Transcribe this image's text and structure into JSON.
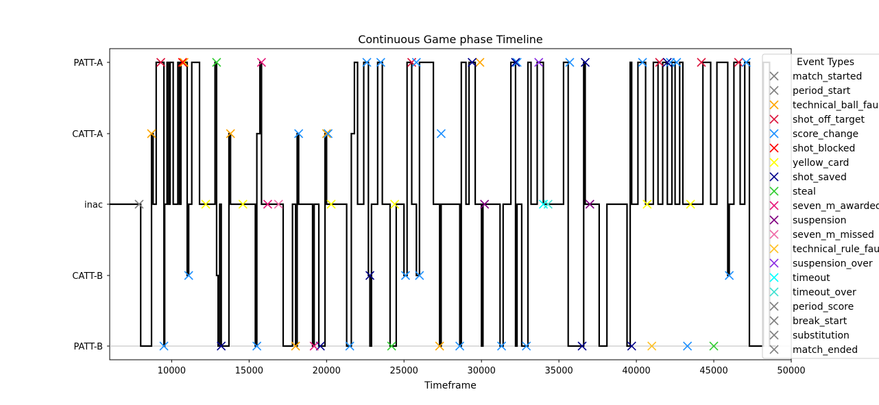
{
  "chart_data": {
    "type": "line",
    "title": "Continuous Game phase Timeline",
    "xlabel": "Timeframe",
    "ylabel": "",
    "xlim": [
      6000,
      50000
    ],
    "x_ticks": [
      10000,
      15000,
      20000,
      25000,
      30000,
      35000,
      40000,
      45000,
      50000
    ],
    "y_categories": [
      "PATT-B",
      "CATT-B",
      "inac",
      "CATT-A",
      "PATT-A"
    ],
    "grid": false,
    "legend_position": "right, clipped at figure edge",
    "phase_series": {
      "color": "#000000",
      "points": [
        [
          6000,
          "inac"
        ],
        [
          8000,
          "inac"
        ],
        [
          8000,
          "PATT-B"
        ],
        [
          8700,
          "PATT-B"
        ],
        [
          8700,
          "CATT-A"
        ],
        [
          8800,
          "CATT-A"
        ],
        [
          8800,
          "inac"
        ],
        [
          9000,
          "inac"
        ],
        [
          9000,
          "PATT-A"
        ],
        [
          9500,
          "PATT-A"
        ],
        [
          9500,
          "PATT-B"
        ],
        [
          9550,
          "PATT-B"
        ],
        [
          9550,
          "inac"
        ],
        [
          9700,
          "inac"
        ],
        [
          9700,
          "PATT-A"
        ],
        [
          9800,
          "PATT-A"
        ],
        [
          9800,
          "inac"
        ],
        [
          9900,
          "inac"
        ],
        [
          9900,
          "PATT-A"
        ],
        [
          10100,
          "PATT-A"
        ],
        [
          10100,
          "inac"
        ],
        [
          10400,
          "inac"
        ],
        [
          10400,
          "PATT-A"
        ],
        [
          10500,
          "PATT-A"
        ],
        [
          10500,
          "inac"
        ],
        [
          10600,
          "inac"
        ],
        [
          10600,
          "PATT-A"
        ],
        [
          11000,
          "PATT-A"
        ],
        [
          11000,
          "CATT-B"
        ],
        [
          11100,
          "CATT-B"
        ],
        [
          11100,
          "inac"
        ],
        [
          11300,
          "inac"
        ],
        [
          11300,
          "PATT-A"
        ],
        [
          11800,
          "PATT-A"
        ],
        [
          11800,
          "inac"
        ],
        [
          12800,
          "inac"
        ],
        [
          12800,
          "PATT-A"
        ],
        [
          12900,
          "PATT-A"
        ],
        [
          12900,
          "CATT-B"
        ],
        [
          13000,
          "CATT-B"
        ],
        [
          13000,
          "PATT-B"
        ],
        [
          13100,
          "PATT-B"
        ],
        [
          13100,
          "inac"
        ],
        [
          13200,
          "inac"
        ],
        [
          13200,
          "PATT-B"
        ],
        [
          13700,
          "PATT-B"
        ],
        [
          13700,
          "CATT-A"
        ],
        [
          13800,
          "CATT-A"
        ],
        [
          13800,
          "inac"
        ],
        [
          15400,
          "inac"
        ],
        [
          15400,
          "PATT-B"
        ],
        [
          15500,
          "PATT-B"
        ],
        [
          15500,
          "CATT-A"
        ],
        [
          15700,
          "CATT-A"
        ],
        [
          15700,
          "PATT-A"
        ],
        [
          15800,
          "PATT-A"
        ],
        [
          15800,
          "inac"
        ],
        [
          17200,
          "inac"
        ],
        [
          17200,
          "PATT-B"
        ],
        [
          17800,
          "PATT-B"
        ],
        [
          17800,
          "inac"
        ],
        [
          18000,
          "inac"
        ],
        [
          18000,
          "PATT-B"
        ],
        [
          18100,
          "PATT-B"
        ],
        [
          18100,
          "CATT-A"
        ],
        [
          18200,
          "CATT-A"
        ],
        [
          18200,
          "inac"
        ],
        [
          19100,
          "inac"
        ],
        [
          19100,
          "PATT-B"
        ],
        [
          19200,
          "PATT-B"
        ],
        [
          19200,
          "inac"
        ],
        [
          19500,
          "inac"
        ],
        [
          19500,
          "PATT-B"
        ],
        [
          19900,
          "PATT-B"
        ],
        [
          19900,
          "CATT-A"
        ],
        [
          20000,
          "CATT-A"
        ],
        [
          20000,
          "inac"
        ],
        [
          21300,
          "inac"
        ],
        [
          21300,
          "PATT-B"
        ],
        [
          21600,
          "PATT-B"
        ],
        [
          21600,
          "CATT-A"
        ],
        [
          21800,
          "CATT-A"
        ],
        [
          21800,
          "PATT-A"
        ],
        [
          22000,
          "PATT-A"
        ],
        [
          22000,
          "inac"
        ],
        [
          22400,
          "inac"
        ],
        [
          22400,
          "PATT-A"
        ],
        [
          22700,
          "PATT-A"
        ],
        [
          22700,
          "CATT-B"
        ],
        [
          22800,
          "CATT-B"
        ],
        [
          22800,
          "PATT-B"
        ],
        [
          22900,
          "PATT-B"
        ],
        [
          22900,
          "inac"
        ],
        [
          23300,
          "inac"
        ],
        [
          23300,
          "PATT-A"
        ],
        [
          23600,
          "PATT-A"
        ],
        [
          23600,
          "inac"
        ],
        [
          24100,
          "inac"
        ],
        [
          24100,
          "PATT-B"
        ],
        [
          24500,
          "PATT-B"
        ],
        [
          24500,
          "inac"
        ],
        [
          25000,
          "inac"
        ],
        [
          25000,
          "CATT-B"
        ],
        [
          25200,
          "CATT-B"
        ],
        [
          25200,
          "PATT-A"
        ],
        [
          25500,
          "PATT-A"
        ],
        [
          25500,
          "inac"
        ],
        [
          25800,
          "inac"
        ],
        [
          25800,
          "CATT-B"
        ],
        [
          26000,
          "CATT-B"
        ],
        [
          26000,
          "PATT-A"
        ],
        [
          26900,
          "PATT-A"
        ],
        [
          26900,
          "inac"
        ],
        [
          27300,
          "inac"
        ],
        [
          27300,
          "PATT-B"
        ],
        [
          27400,
          "PATT-B"
        ],
        [
          27400,
          "inac"
        ],
        [
          28600,
          "inac"
        ],
        [
          28600,
          "PATT-B"
        ],
        [
          28700,
          "PATT-B"
        ],
        [
          28700,
          "PATT-A"
        ],
        [
          29000,
          "PATT-A"
        ],
        [
          29000,
          "inac"
        ],
        [
          29200,
          "inac"
        ],
        [
          29200,
          "PATT-A"
        ],
        [
          29600,
          "PATT-A"
        ],
        [
          29600,
          "inac"
        ],
        [
          30000,
          "inac"
        ],
        [
          30000,
          "PATT-B"
        ],
        [
          30100,
          "PATT-B"
        ],
        [
          30100,
          "inac"
        ],
        [
          31200,
          "inac"
        ],
        [
          31200,
          "PATT-B"
        ],
        [
          31400,
          "PATT-B"
        ],
        [
          31400,
          "inac"
        ],
        [
          31900,
          "inac"
        ],
        [
          31900,
          "PATT-A"
        ],
        [
          32200,
          "PATT-A"
        ],
        [
          32200,
          "PATT-B"
        ],
        [
          32300,
          "PATT-B"
        ],
        [
          32300,
          "inac"
        ],
        [
          32600,
          "inac"
        ],
        [
          32600,
          "PATT-B"
        ],
        [
          33000,
          "PATT-B"
        ],
        [
          33000,
          "PATT-A"
        ],
        [
          33200,
          "PATT-A"
        ],
        [
          33200,
          "inac"
        ],
        [
          33600,
          "inac"
        ],
        [
          33600,
          "PATT-A"
        ],
        [
          34000,
          "PATT-A"
        ],
        [
          34000,
          "inac"
        ],
        [
          35300,
          "inac"
        ],
        [
          35300,
          "PATT-A"
        ],
        [
          35600,
          "PATT-A"
        ],
        [
          35600,
          "PATT-B"
        ],
        [
          36600,
          "PATT-B"
        ],
        [
          36600,
          "PATT-A"
        ],
        [
          36700,
          "PATT-A"
        ],
        [
          36700,
          "inac"
        ],
        [
          37600,
          "inac"
        ],
        [
          37600,
          "PATT-B"
        ],
        [
          38100,
          "PATT-B"
        ],
        [
          38100,
          "inac"
        ],
        [
          39400,
          "inac"
        ],
        [
          39400,
          "PATT-B"
        ],
        [
          39600,
          "PATT-B"
        ],
        [
          39600,
          "PATT-A"
        ],
        [
          39700,
          "PATT-A"
        ],
        [
          39700,
          "inac"
        ],
        [
          40100,
          "inac"
        ],
        [
          40100,
          "PATT-A"
        ],
        [
          40600,
          "PATT-A"
        ],
        [
          40600,
          "inac"
        ],
        [
          41100,
          "inac"
        ],
        [
          41100,
          "PATT-A"
        ],
        [
          41400,
          "PATT-A"
        ],
        [
          41400,
          "inac"
        ],
        [
          41700,
          "inac"
        ],
        [
          41700,
          "PATT-A"
        ],
        [
          42000,
          "PATT-A"
        ],
        [
          42000,
          "inac"
        ],
        [
          42300,
          "inac"
        ],
        [
          42300,
          "PATT-A"
        ],
        [
          42500,
          "PATT-A"
        ],
        [
          42500,
          "inac"
        ],
        [
          42800,
          "inac"
        ],
        [
          42800,
          "PATT-A"
        ],
        [
          43000,
          "PATT-A"
        ],
        [
          43000,
          "inac"
        ],
        [
          44300,
          "inac"
        ],
        [
          44300,
          "PATT-A"
        ],
        [
          44800,
          "PATT-A"
        ],
        [
          44800,
          "inac"
        ],
        [
          45200,
          "inac"
        ],
        [
          45200,
          "PATT-A"
        ],
        [
          45900,
          "PATT-A"
        ],
        [
          45900,
          "CATT-B"
        ],
        [
          46000,
          "CATT-B"
        ],
        [
          46000,
          "inac"
        ],
        [
          46300,
          "inac"
        ],
        [
          46300,
          "PATT-A"
        ],
        [
          46700,
          "PATT-A"
        ],
        [
          46700,
          "inac"
        ],
        [
          47000,
          "inac"
        ],
        [
          47000,
          "PATT-A"
        ],
        [
          47300,
          "PATT-A"
        ],
        [
          47300,
          "PATT-B"
        ],
        [
          48200,
          "PATT-B"
        ],
        [
          48200,
          "PATT-A"
        ],
        [
          48600,
          "PATT-A"
        ],
        [
          48600,
          "PATT-B"
        ],
        [
          49000,
          "PATT-B"
        ]
      ]
    },
    "events": [
      {
        "type": "match_started",
        "color": "#7f7f7f",
        "points": [
          [
            7900,
            "inac"
          ]
        ]
      },
      {
        "type": "period_start",
        "color": "#7f7f7f",
        "points": []
      },
      {
        "type": "technical_ball_fault",
        "color": "#ffa500",
        "points": [
          [
            8700,
            "CATT-A"
          ],
          [
            10800,
            "PATT-A"
          ],
          [
            13800,
            "CATT-A"
          ],
          [
            18000,
            "PATT-B"
          ],
          [
            20000,
            "CATT-A"
          ],
          [
            27300,
            "PATT-B"
          ],
          [
            29900,
            "PATT-A"
          ]
        ]
      },
      {
        "type": "shot_off_target",
        "color": "#dc143c",
        "points": [
          [
            9300,
            "PATT-A"
          ],
          [
            25500,
            "PATT-A"
          ],
          [
            41500,
            "PATT-A"
          ],
          [
            44200,
            "PATT-A"
          ],
          [
            46600,
            "PATT-A"
          ]
        ]
      },
      {
        "type": "score_change",
        "color": "#1e90ff",
        "points": [
          [
            9500,
            "PATT-B"
          ],
          [
            11100,
            "CATT-B"
          ],
          [
            15500,
            "PATT-B"
          ],
          [
            18200,
            "CATT-A"
          ],
          [
            20100,
            "CATT-A"
          ],
          [
            21500,
            "PATT-B"
          ],
          [
            22600,
            "PATT-A"
          ],
          [
            23500,
            "PATT-A"
          ],
          [
            25100,
            "CATT-B"
          ],
          [
            25800,
            "PATT-A"
          ],
          [
            26000,
            "CATT-B"
          ],
          [
            27400,
            "CATT-A"
          ],
          [
            28600,
            "PATT-B"
          ],
          [
            31300,
            "PATT-B"
          ],
          [
            32300,
            "PATT-A"
          ],
          [
            32900,
            "PATT-B"
          ],
          [
            35700,
            "PATT-A"
          ],
          [
            40400,
            "PATT-A"
          ],
          [
            42200,
            "PATT-A"
          ],
          [
            42600,
            "PATT-A"
          ],
          [
            43300,
            "PATT-B"
          ],
          [
            46000,
            "CATT-B"
          ],
          [
            47100,
            "PATT-A"
          ]
        ]
      },
      {
        "type": "shot_blocked",
        "color": "#ff0000",
        "points": [
          [
            10700,
            "PATT-A"
          ]
        ]
      },
      {
        "type": "yellow_card",
        "color": "#ffff00",
        "points": [
          [
            12200,
            "inac"
          ],
          [
            14600,
            "inac"
          ],
          [
            20300,
            "inac"
          ],
          [
            24400,
            "inac"
          ],
          [
            40700,
            "inac"
          ],
          [
            43500,
            "inac"
          ]
        ]
      },
      {
        "type": "shot_saved",
        "color": "#00008b",
        "points": [
          [
            13200,
            "PATT-B"
          ],
          [
            19600,
            "PATT-B"
          ],
          [
            22800,
            "CATT-B"
          ],
          [
            29400,
            "PATT-A"
          ],
          [
            32200,
            "PATT-A"
          ],
          [
            36500,
            "PATT-B"
          ],
          [
            36700,
            "PATT-A"
          ],
          [
            39700,
            "PATT-B"
          ],
          [
            42000,
            "PATT-A"
          ]
        ]
      },
      {
        "type": "steal",
        "color": "#32cd32",
        "points": [
          [
            12900,
            "PATT-A"
          ],
          [
            24200,
            "PATT-B"
          ],
          [
            45000,
            "PATT-B"
          ]
        ]
      },
      {
        "type": "seven_m_awarded",
        "color": "#e6197a",
        "points": [
          [
            15800,
            "PATT-A"
          ],
          [
            16200,
            "inac"
          ],
          [
            19200,
            "PATT-B"
          ]
        ]
      },
      {
        "type": "suspension",
        "color": "#800080",
        "points": [
          [
            30200,
            "inac"
          ],
          [
            37000,
            "inac"
          ]
        ]
      },
      {
        "type": "seven_m_missed",
        "color": "#ee6aa7",
        "points": [
          [
            16900,
            "inac"
          ]
        ]
      },
      {
        "type": "technical_rule_fault",
        "color": "#ffc125",
        "points": [
          [
            41000,
            "PATT-B"
          ]
        ]
      },
      {
        "type": "suspension_over",
        "color": "#8a2be2",
        "points": [
          [
            33700,
            "PATT-A"
          ]
        ]
      },
      {
        "type": "timeout",
        "color": "#00ffff",
        "points": [
          [
            34000,
            "inac"
          ]
        ]
      },
      {
        "type": "timeout_over",
        "color": "#40e0d0",
        "points": [
          [
            34300,
            "inac"
          ]
        ]
      },
      {
        "type": "period_score",
        "color": "#808080",
        "points": []
      },
      {
        "type": "break_start",
        "color": "#808080",
        "points": []
      },
      {
        "type": "substitution",
        "color": "#808080",
        "points": []
      },
      {
        "type": "match_ended",
        "color": "#808080",
        "points": []
      }
    ],
    "legend_title": "Event Types",
    "legend_labels": [
      "match_started",
      "period_start",
      "technical_ball_faul",
      "shot_off_target",
      "score_change",
      "shot_blocked",
      "yellow_card",
      "shot_saved",
      "steal",
      "seven_m_awarded",
      "suspension",
      "seven_m_missed",
      "technical_rule_fau",
      "suspension_over",
      "timeout",
      "timeout_over",
      "period_score",
      "break_start",
      "substitution",
      "match_ended"
    ]
  }
}
